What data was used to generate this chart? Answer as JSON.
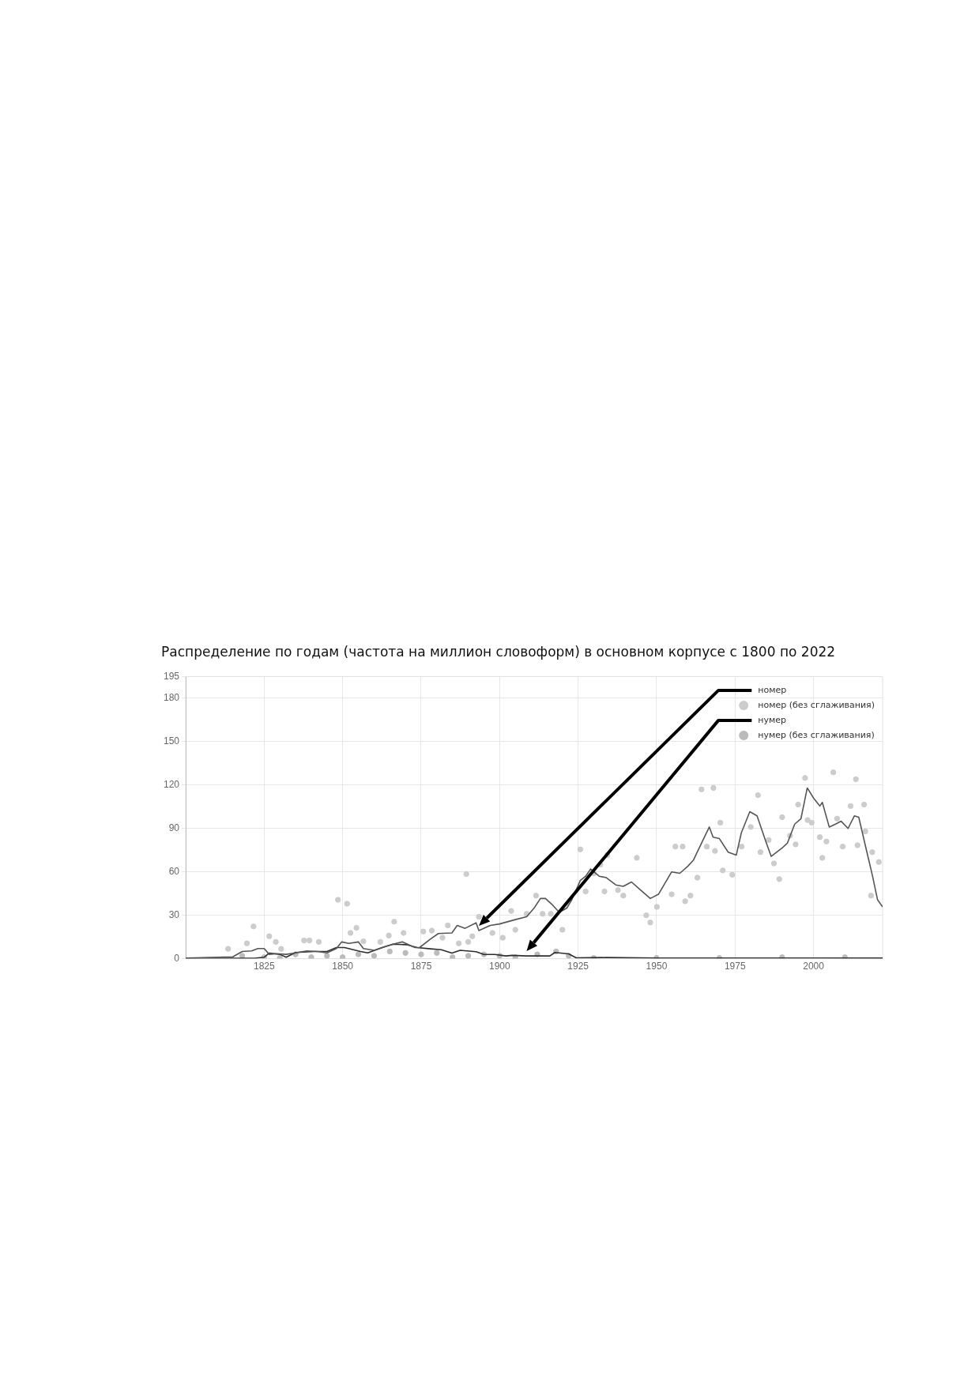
{
  "chart_data": {
    "type": "line",
    "title": "Распределение по годам (частота на миллион словоформ) в основном корпусе с 1800 по 2022",
    "xlim": [
      1800,
      2022
    ],
    "xticks": [
      1825,
      1850,
      1875,
      1900,
      1925,
      1950,
      1975,
      2000
    ],
    "ylim": [
      0,
      195
    ],
    "yticks": [
      0,
      30,
      60,
      90,
      120,
      150,
      180,
      195
    ],
    "grid": true,
    "legend": "top right",
    "marker": "none",
    "series": [
      {
        "name": "номер",
        "color": "#555555",
        "x": [
          1800,
          1810,
          1815,
          1818,
          1821,
          1823,
          1825,
          1826.6,
          1829,
          1832,
          1835,
          1838.6,
          1842,
          1845,
          1848,
          1849.7,
          1852,
          1855,
          1856.6,
          1860,
          1864,
          1867,
          1869,
          1873,
          1874.5,
          1878,
          1880.5,
          1884.8,
          1886.5,
          1889,
          1892.5,
          1893.4,
          1897,
          1900,
          1905,
          1908.6,
          1911,
          1913,
          1914.6,
          1917,
          1919,
          1921.4,
          1923,
          1925.7,
          1927.4,
          1929,
          1931.7,
          1934,
          1937,
          1939.4,
          1942,
          1944.6,
          1948,
          1950.6,
          1954.8,
          1957.4,
          1960,
          1961.7,
          1965,
          1966.8,
          1968,
          1970,
          1972.8,
          1975.4,
          1977,
          1979.7,
          1982,
          1984.8,
          1986.5,
          1990,
          1991.7,
          1994,
          1996,
          1998,
          2000,
          2002,
          2002.8,
          2005,
          2007,
          2008.8,
          2011,
          2013,
          2014.4,
          2017,
          2018.7,
          2020.4,
          2022
        ],
        "values": [
          0.5,
          1,
          1.3,
          5,
          5.4,
          7,
          7,
          3,
          3.5,
          3,
          4,
          5.4,
          5,
          4,
          7,
          11.6,
          10.6,
          11.6,
          7,
          5.8,
          8.7,
          10.6,
          11.6,
          7.7,
          7.7,
          13.6,
          17.4,
          17.8,
          23,
          21,
          24.8,
          19.4,
          23,
          24,
          27,
          29,
          35,
          41.6,
          41.6,
          36.8,
          32,
          35,
          40.7,
          54,
          57,
          62,
          57,
          56,
          51,
          50,
          53,
          48,
          41.6,
          44.5,
          60,
          59,
          64,
          68,
          83,
          91,
          84,
          83,
          73.6,
          71.6,
          87,
          101.6,
          98.7,
          81,
          70.7,
          76.5,
          80,
          93,
          96.8,
          118,
          111,
          105.5,
          108,
          91,
          93,
          95,
          90,
          98.7,
          97.8,
          73.6,
          58,
          40.7,
          35.8
        ]
      },
      {
        "name": "номер (без сглаживания)",
        "type": "scatter",
        "marker": "circle",
        "color": "#cccccc",
        "x": [
          1813.5,
          1819.5,
          1821.6,
          1826.6,
          1828.7,
          1830.4,
          1837.7,
          1839.4,
          1842.4,
          1848.5,
          1851.4,
          1852.5,
          1854.4,
          1856.6,
          1862,
          1864.7,
          1866.4,
          1869.4,
          1875.7,
          1878.4,
          1881.8,
          1883.5,
          1887,
          1889.4,
          1890,
          1891.3,
          1893.4,
          1897.7,
          1901,
          1903.7,
          1905,
          1908.6,
          1911.6,
          1913.7,
          1916.3,
          1920,
          1925.7,
          1927.4,
          1930,
          1932.1,
          1933.4,
          1934.3,
          1937.7,
          1939.4,
          1943.7,
          1946.7,
          1948,
          1950.1,
          1954.8,
          1956,
          1958.3,
          1959.1,
          1960.8,
          1963,
          1964.3,
          1966,
          1968.1,
          1968.6,
          1970.3,
          1971.1,
          1974.1,
          1977.1,
          1980,
          1982.3,
          1983.1,
          1985.7,
          1987.4,
          1989.1,
          1990,
          1992.5,
          1994.3,
          1995.1,
          1997.3,
          1998.1,
          1999.4,
          2002,
          2002.8,
          2004.1,
          2006.3,
          2007.5,
          2009.3,
          2011.8,
          2013.5,
          2014,
          2016.1,
          2016.5,
          2018.3,
          2018.7,
          2020.8
        ],
        "values": [
          6.8,
          10.6,
          22.3,
          15.5,
          11.6,
          6.8,
          12.6,
          12.6,
          11.6,
          40.7,
          38,
          17.8,
          21.3,
          12,
          11.6,
          16,
          25.6,
          17.8,
          18.8,
          19.4,
          14.5,
          23,
          10.6,
          58.5,
          11.6,
          15.5,
          29,
          17.8,
          14.5,
          33,
          20,
          31,
          43.6,
          31,
          31,
          20,
          75.5,
          46.5,
          59,
          65,
          46.5,
          71.6,
          47.4,
          43.6,
          69.7,
          30,
          25,
          35.8,
          44.5,
          77.5,
          77.5,
          39.7,
          43.6,
          56,
          117,
          77.5,
          118,
          74.5,
          94,
          61,
          58,
          77.5,
          91,
          113,
          73.6,
          82,
          65.8,
          55,
          97.8,
          85,
          79,
          106.5,
          124.9,
          95.8,
          94,
          84,
          69.7,
          81,
          128.8,
          96.8,
          77.5,
          105.5,
          124,
          78.4,
          106.5,
          88,
          43.6,
          73.6,
          66.8
        ]
      },
      {
        "name": "нумер",
        "color": "#2e2e2e",
        "x": [
          1800,
          1822,
          1825,
          1826.6,
          1830,
          1832,
          1835,
          1841,
          1845,
          1848,
          1850.6,
          1855.7,
          1858,
          1862.6,
          1866,
          1870.3,
          1873.7,
          1878,
          1881.4,
          1884.8,
          1887.4,
          1892.5,
          1895,
          1898.5,
          1902,
          1904,
          1908.6,
          1916,
          1917.6,
          1922,
          1924.4,
          1934,
          1950,
          2000,
          2022
        ],
        "values": [
          0.3,
          0.3,
          1,
          3.9,
          3,
          1,
          4.3,
          5,
          5,
          7.7,
          7.7,
          5,
          4,
          7.7,
          10,
          9.7,
          7.7,
          6.8,
          6.2,
          3.9,
          5.8,
          4.8,
          2.9,
          2.9,
          1.9,
          2.3,
          1.9,
          1.9,
          4.3,
          3.3,
          0.6,
          0.8,
          0.5,
          0.5,
          0.4
        ]
      },
      {
        "name": "нумер (без сглаживания)",
        "type": "scatter",
        "marker": "circle",
        "color": "#bbbbbb",
        "x": [
          1818,
          1825,
          1830,
          1835,
          1840,
          1845,
          1850,
          1855,
          1860,
          1865,
          1870,
          1875,
          1880,
          1885,
          1890,
          1895,
          1900,
          1905,
          1912,
          1918,
          1922,
          1930,
          1950,
          1970,
          1990,
          2010
        ],
        "values": [
          2,
          1,
          0.5,
          3,
          1,
          2,
          1,
          3,
          2,
          5,
          4,
          3,
          4,
          1,
          2,
          3,
          2,
          1,
          3,
          5,
          2,
          0.5,
          0.5,
          0.5,
          1,
          1
        ]
      }
    ]
  }
}
